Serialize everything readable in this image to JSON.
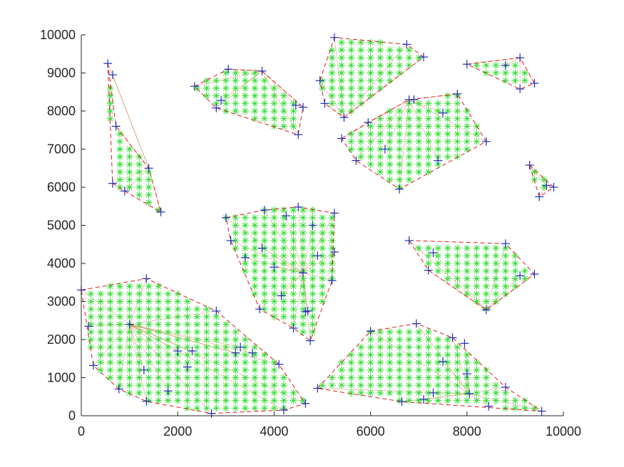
{
  "figure": {
    "background": "#ffffff"
  },
  "chart_data": {
    "type": "scatter",
    "title": "",
    "xlabel": "",
    "ylabel": "",
    "xlim": [
      0,
      10000
    ],
    "ylim": [
      0,
      10000
    ],
    "xticks": [
      "0",
      "2000",
      "4000",
      "6000",
      "8000",
      "10000"
    ],
    "yticks": [
      "0",
      "1000",
      "2000",
      "3000",
      "4000",
      "5000",
      "6000",
      "7000",
      "8000",
      "9000",
      "10000"
    ],
    "grid": false,
    "legend": "none",
    "colors": {
      "vertex_marker": "#1f2fb8",
      "fill_marker": "#33dd33",
      "hull_line": "#e31a1c",
      "triangulation_line": "#b06a1a"
    },
    "fill_spacing": 200,
    "series": [
      {
        "marker": "+",
        "points": [
          [
            0,
            3300
          ],
          [
            250,
            1320
          ],
          [
            780,
            700
          ],
          [
            1350,
            380
          ],
          [
            2700,
            60
          ],
          [
            4200,
            150
          ],
          [
            4650,
            320
          ],
          [
            4100,
            1350
          ],
          [
            2800,
            2750
          ],
          [
            1350,
            3600
          ],
          [
            1000,
            2400
          ],
          [
            1300,
            1200
          ],
          [
            2000,
            1700
          ],
          [
            2200,
            1280
          ],
          [
            2300,
            1700
          ],
          [
            3200,
            1650
          ],
          [
            3300,
            1800
          ],
          [
            3550,
            1650
          ],
          [
            1800,
            650
          ],
          [
            150,
            2350
          ]
        ]
      },
      {
        "marker": "+",
        "points": [
          [
            550,
            9250
          ],
          [
            650,
            8950
          ],
          [
            720,
            7600
          ],
          [
            1400,
            6500
          ],
          [
            1650,
            5350
          ],
          [
            900,
            5900
          ],
          [
            650,
            6100
          ]
        ]
      },
      {
        "marker": "+",
        "points": [
          [
            2350,
            8650
          ],
          [
            2800,
            8080
          ],
          [
            2900,
            8280
          ],
          [
            3050,
            9100
          ],
          [
            3750,
            9050
          ],
          [
            4450,
            8150
          ],
          [
            4600,
            8100
          ],
          [
            4500,
            7380
          ]
        ]
      },
      {
        "marker": "+",
        "points": [
          [
            3000,
            5200
          ],
          [
            3100,
            4600
          ],
          [
            3400,
            4150
          ],
          [
            3700,
            2800
          ],
          [
            3750,
            4400
          ],
          [
            3800,
            5400
          ],
          [
            4000,
            3900
          ],
          [
            4150,
            3150
          ],
          [
            4250,
            5250
          ],
          [
            4500,
            5480
          ],
          [
            4600,
            3750
          ],
          [
            4650,
            2730
          ],
          [
            4700,
            2750
          ],
          [
            4400,
            2300
          ],
          [
            4750,
            1970
          ],
          [
            4900,
            4200
          ],
          [
            5200,
            3550
          ],
          [
            5250,
            4300
          ],
          [
            5250,
            5320
          ],
          [
            4800,
            5000
          ]
        ]
      },
      {
        "marker": "+",
        "points": [
          [
            4950,
            8800
          ],
          [
            5050,
            8200
          ],
          [
            5250,
            9930
          ],
          [
            5450,
            7830
          ],
          [
            6750,
            9750
          ],
          [
            7100,
            9420
          ]
        ]
      },
      {
        "marker": "+",
        "points": [
          [
            5400,
            7280
          ],
          [
            5700,
            6700
          ],
          [
            5950,
            7700
          ],
          [
            6300,
            7000
          ],
          [
            6600,
            5950
          ],
          [
            6800,
            8300
          ],
          [
            6900,
            8300
          ],
          [
            7400,
            6700
          ],
          [
            7500,
            7950
          ],
          [
            7800,
            8450
          ],
          [
            8400,
            7200
          ]
        ]
      },
      {
        "marker": "+",
        "points": [
          [
            8000,
            9230
          ],
          [
            8800,
            9200
          ],
          [
            9100,
            9400
          ],
          [
            9100,
            8580
          ],
          [
            9400,
            8730
          ]
        ]
      },
      {
        "marker": "+",
        "points": [
          [
            9300,
            6580
          ],
          [
            9500,
            5750
          ],
          [
            9650,
            6050
          ],
          [
            9800,
            6000
          ]
        ]
      },
      {
        "marker": "+",
        "points": [
          [
            6800,
            4600
          ],
          [
            7200,
            3820
          ],
          [
            7300,
            4280
          ],
          [
            8400,
            2780
          ],
          [
            8800,
            4520
          ],
          [
            9400,
            3720
          ],
          [
            9100,
            3680
          ]
        ]
      },
      {
        "marker": "+",
        "points": [
          [
            4900,
            720
          ],
          [
            6000,
            2220
          ],
          [
            6950,
            2420
          ],
          [
            7500,
            1420
          ],
          [
            7700,
            2050
          ],
          [
            7950,
            1900
          ],
          [
            8000,
            1100
          ],
          [
            8050,
            580
          ],
          [
            8450,
            250
          ],
          [
            8800,
            750
          ],
          [
            9550,
            120
          ],
          [
            7100,
            430
          ],
          [
            6650,
            370
          ],
          [
            7300,
            600
          ]
        ]
      }
    ],
    "polygons": [
      [
        [
          0,
          3300
        ],
        [
          1350,
          3600
        ],
        [
          2800,
          2750
        ],
        [
          4100,
          1350
        ],
        [
          4650,
          320
        ],
        [
          4200,
          150
        ],
        [
          2700,
          60
        ],
        [
          1350,
          380
        ],
        [
          780,
          700
        ],
        [
          250,
          1320
        ]
      ],
      [
        [
          550,
          9250
        ],
        [
          720,
          7600
        ],
        [
          1400,
          6500
        ],
        [
          1650,
          5350
        ],
        [
          900,
          5900
        ],
        [
          650,
          6100
        ]
      ],
      [
        [
          2350,
          8650
        ],
        [
          3050,
          9100
        ],
        [
          3750,
          9050
        ],
        [
          4600,
          8100
        ],
        [
          4500,
          7380
        ],
        [
          2800,
          8080
        ]
      ],
      [
        [
          3000,
          5200
        ],
        [
          3800,
          5400
        ],
        [
          4500,
          5480
        ],
        [
          5250,
          5320
        ],
        [
          5200,
          3550
        ],
        [
          4750,
          1970
        ],
        [
          4400,
          2300
        ],
        [
          3700,
          2800
        ],
        [
          3100,
          4600
        ]
      ],
      [
        [
          4950,
          8800
        ],
        [
          5250,
          9930
        ],
        [
          6750,
          9750
        ],
        [
          7100,
          9420
        ],
        [
          5450,
          7830
        ],
        [
          5050,
          8200
        ]
      ],
      [
        [
          5400,
          7280
        ],
        [
          5950,
          7700
        ],
        [
          6800,
          8300
        ],
        [
          7800,
          8450
        ],
        [
          8400,
          7200
        ],
        [
          6600,
          5950
        ],
        [
          5700,
          6700
        ]
      ],
      [
        [
          8000,
          9230
        ],
        [
          9100,
          9400
        ],
        [
          9400,
          8730
        ],
        [
          9100,
          8580
        ]
      ],
      [
        [
          9300,
          6580
        ],
        [
          9800,
          6000
        ],
        [
          9500,
          5750
        ]
      ],
      [
        [
          6800,
          4600
        ],
        [
          8800,
          4520
        ],
        [
          9400,
          3720
        ],
        [
          8400,
          2780
        ],
        [
          7200,
          3820
        ]
      ],
      [
        [
          4900,
          720
        ],
        [
          6000,
          2220
        ],
        [
          6950,
          2420
        ],
        [
          7700,
          2050
        ],
        [
          8800,
          750
        ],
        [
          9550,
          120
        ],
        [
          6650,
          370
        ]
      ]
    ]
  }
}
